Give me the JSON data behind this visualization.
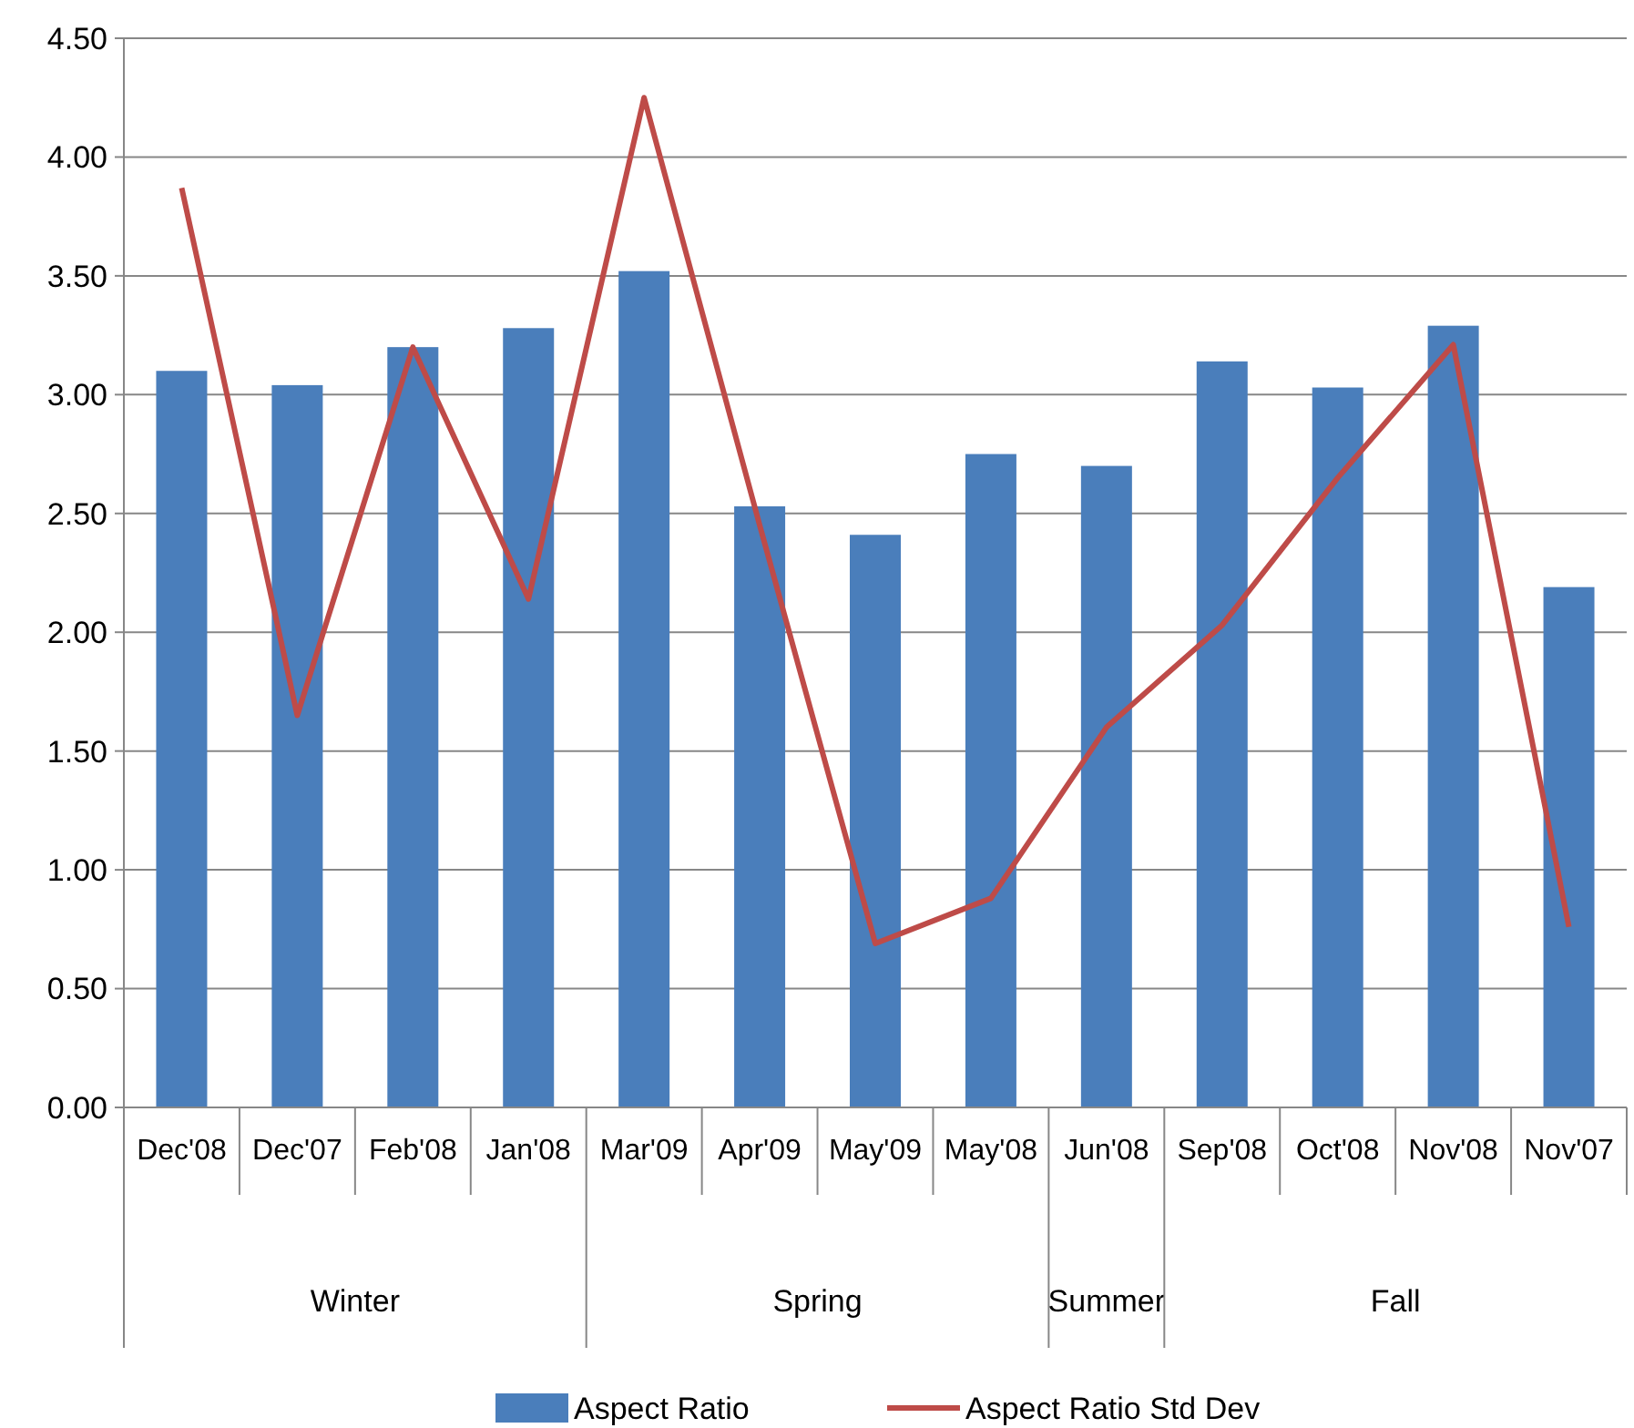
{
  "chart_data": {
    "type": "bar",
    "categories": [
      "Dec'08",
      "Dec'07",
      "Feb'08",
      "Jan'08",
      "Mar'09",
      "Apr'09",
      "May'09",
      "May'08",
      "Jun'08",
      "Sep'08",
      "Oct'08",
      "Nov'08",
      "Nov'07"
    ],
    "series": [
      {
        "name": "Aspect Ratio",
        "color": "#4a7ebb",
        "values": [
          3.1,
          3.04,
          3.2,
          3.28,
          3.52,
          2.53,
          2.41,
          2.75,
          2.7,
          3.14,
          3.03,
          3.29,
          2.19
        ]
      },
      {
        "name": "Aspect Ratio Std Dev",
        "type": "line",
        "color": "#be4b48",
        "values": [
          3.87,
          1.65,
          3.2,
          2.14,
          4.25,
          2.45,
          0.69,
          0.88,
          1.6,
          2.03,
          2.65,
          3.21,
          0.76
        ]
      }
    ],
    "ylim": [
      0,
      4.5
    ],
    "yticks": [
      {
        "value": 0,
        "label": "0.00"
      },
      {
        "value": 0.5,
        "label": "0.50"
      },
      {
        "value": 1,
        "label": "1.00"
      },
      {
        "value": 1.5,
        "label": "1.50"
      },
      {
        "value": 2,
        "label": "2.00"
      },
      {
        "value": 2.5,
        "label": "2.50"
      },
      {
        "value": 3,
        "label": "3.00"
      },
      {
        "value": 3.5,
        "label": "3.50"
      },
      {
        "value": 4,
        "label": "4.00"
      },
      {
        "value": 4.5,
        "label": "4.50"
      }
    ],
    "grid": "y",
    "legend": "bottom",
    "marker": "none",
    "line_style": "solid",
    "annotations": [
      "Winter",
      "Spring",
      "Summer",
      "Fall"
    ]
  }
}
